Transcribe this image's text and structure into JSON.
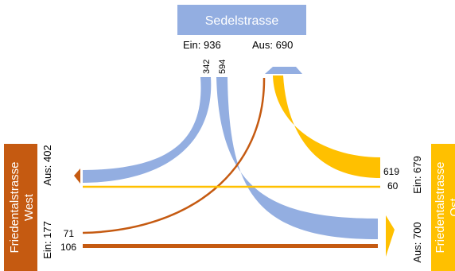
{
  "colors": {
    "north": "#93aee1",
    "west": "#c55a11",
    "east": "#ffc000",
    "box_text": "#ffffff",
    "label_text": "#000000"
  },
  "north": {
    "name": "Sedelstrasse",
    "ein_label": "Ein: 936",
    "aus_label": "Aus: 690",
    "flow_to_west": "342",
    "flow_to_east": "594"
  },
  "west": {
    "name_line1": "Friedentalstrasse",
    "name_line2": "West",
    "ein_label": "Ein: 177",
    "aus_label": "Aus: 402",
    "flow_to_north": "71",
    "flow_to_east": "106"
  },
  "east": {
    "name_line1": "Friedentalstrasse",
    "name_line2": "Ost",
    "ein_label": "Ein: 679",
    "aus_label": "Aus: 700",
    "flow_to_north": "619",
    "flow_to_west": "60"
  }
}
